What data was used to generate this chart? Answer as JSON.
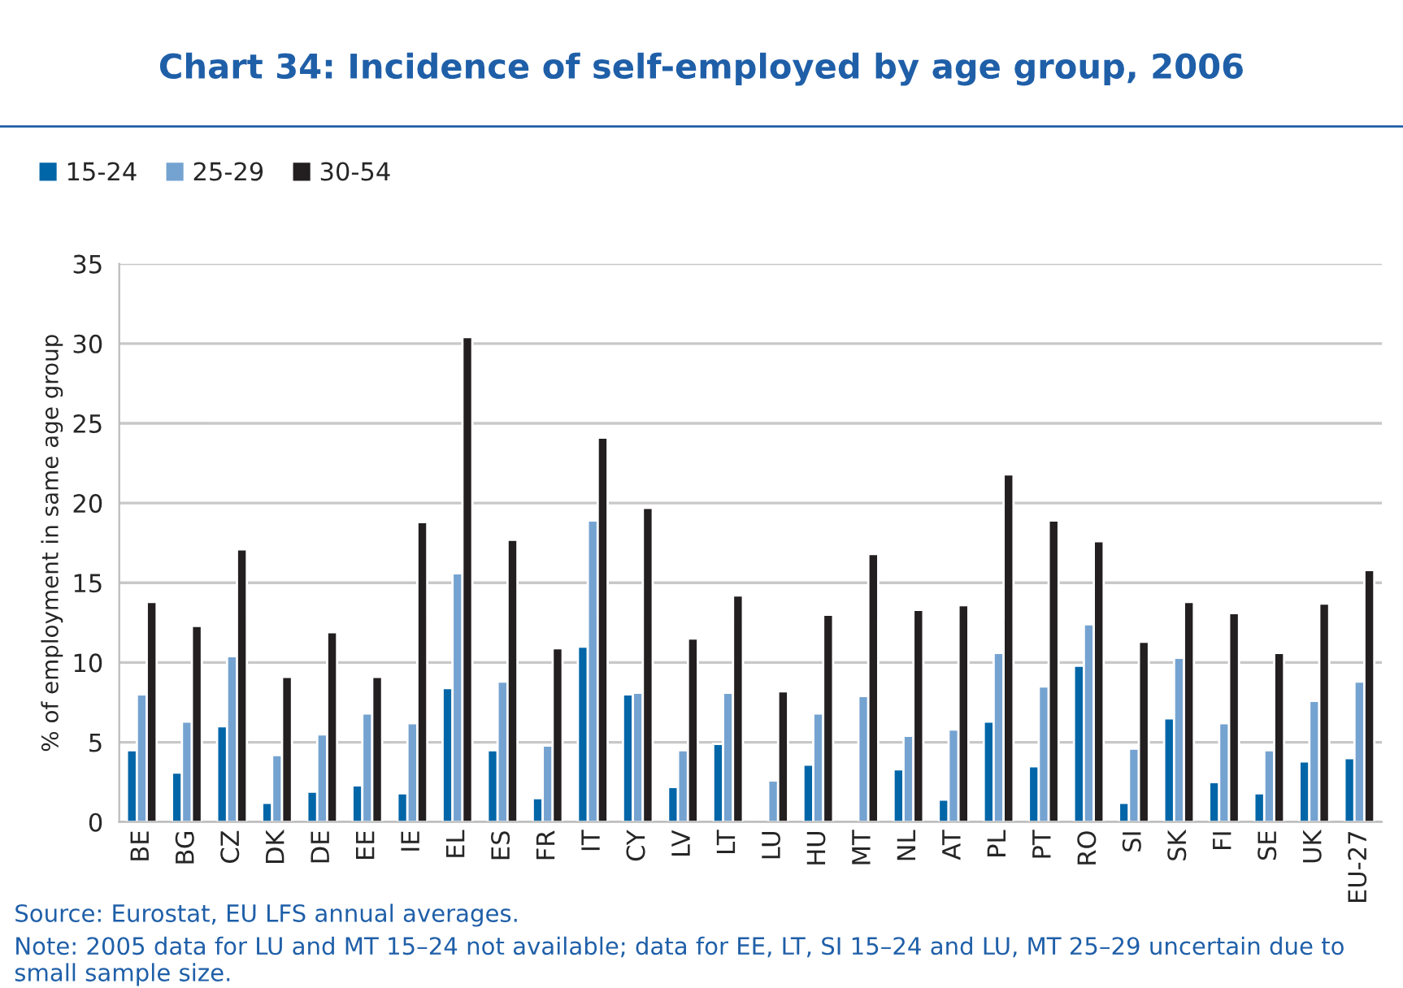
{
  "chart_data": {
    "type": "bar",
    "title": "Chart 34: Incidence of self-employed by age group, 2006",
    "ylabel": "% of employment in same age group",
    "categories": [
      "BE",
      "BG",
      "CZ",
      "DK",
      "DE",
      "EE",
      "IE",
      "EL",
      "ES",
      "FR",
      "IT",
      "CY",
      "LV",
      "LT",
      "LU",
      "HU",
      "MT",
      "NL",
      "AT",
      "PL",
      "PT",
      "RO",
      "SI",
      "SK",
      "FI",
      "SE",
      "UK",
      "EU-27"
    ],
    "series": [
      {
        "name": "15-24",
        "color": "#0066a8",
        "values": [
          4.5,
          3.1,
          6.0,
          1.2,
          1.9,
          2.3,
          1.8,
          8.4,
          4.5,
          1.5,
          11.0,
          8.0,
          2.2,
          4.9,
          null,
          3.6,
          null,
          3.3,
          1.4,
          6.3,
          3.5,
          9.8,
          1.2,
          6.5,
          2.5,
          1.8,
          3.8,
          4.0
        ]
      },
      {
        "name": "25-29",
        "color": "#75a3d1",
        "values": [
          8.0,
          6.3,
          10.4,
          4.2,
          5.5,
          6.8,
          6.2,
          15.6,
          8.8,
          4.8,
          18.9,
          8.1,
          4.5,
          8.1,
          2.6,
          6.8,
          7.9,
          5.4,
          5.8,
          10.6,
          8.5,
          12.4,
          4.6,
          10.3,
          6.2,
          4.5,
          7.6,
          8.8
        ]
      },
      {
        "name": "30-54",
        "color": "#231f20",
        "values": [
          13.8,
          12.3,
          17.1,
          9.1,
          11.9,
          9.1,
          18.8,
          30.4,
          17.7,
          10.9,
          24.1,
          19.7,
          11.5,
          14.2,
          8.2,
          13.0,
          16.8,
          13.3,
          13.6,
          21.8,
          18.9,
          17.6,
          11.3,
          13.8,
          13.1,
          10.6,
          13.7,
          15.8
        ]
      }
    ],
    "ylim": [
      0,
      35
    ],
    "yticks": [
      0,
      5,
      10,
      15,
      20,
      25,
      30,
      35
    ],
    "grid": "y",
    "legend": "top left",
    "annotations": [
      "Source: Eurostat, EU LFS annual averages.",
      "Note: 2005 data for LU and MT 15–24 not available; data for EE, LT, SI 15–24 and LU, MT 25–29 uncertain due to small sample size."
    ]
  }
}
